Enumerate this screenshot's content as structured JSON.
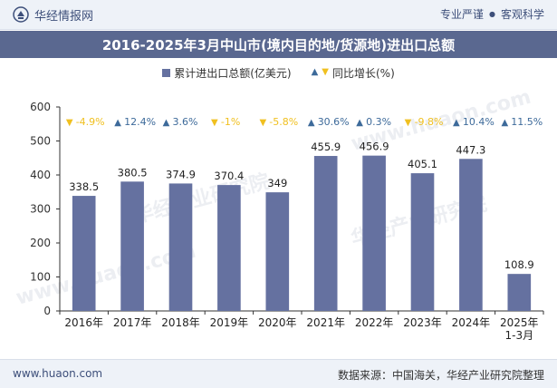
{
  "header": {
    "brand": "华经情报网",
    "tagline_left": "专业严谨",
    "tagline_sep": "●",
    "tagline_right": "客观科学"
  },
  "colors": {
    "bar": "#6571a0",
    "up": "#3d6a9a",
    "down": "#f0c020",
    "title_bg": "#5a6890"
  },
  "footer": {
    "site": "www.huaon.com",
    "source": "数据来源：中国海关，华经产业研究院整理"
  },
  "chart_data": {
    "type": "bar",
    "title": "2016-2025年3月中山市(境内目的地/货源地)进出口总额",
    "categories": [
      "2016年",
      "2017年",
      "2018年",
      "2019年",
      "2020年",
      "2021年",
      "2022年",
      "2023年",
      "2024年",
      "2025年\n1-3月"
    ],
    "series": [
      {
        "name": "累计进出口总额(亿美元)",
        "values": [
          338.5,
          380.5,
          374.9,
          370.4,
          349,
          455.9,
          456.9,
          405.1,
          447.3,
          108.9
        ],
        "value_labels": [
          "338.5",
          "380.5",
          "374.9",
          "370.4",
          "349",
          "455.9",
          "456.9",
          "405.1",
          "447.3",
          "108.9"
        ]
      },
      {
        "name": "同比增长(%)",
        "values": [
          -4.9,
          12.4,
          3.6,
          -1,
          -5.8,
          30.6,
          0.3,
          -9.8,
          10.4,
          11.5
        ],
        "value_labels": [
          "-4.9%",
          "12.4%",
          "3.6%",
          "-1%",
          "-5.8%",
          "30.6%",
          "0.3%",
          "-9.8%",
          "10.4%",
          "11.5%"
        ]
      }
    ],
    "yticks": [
      "0",
      "100",
      "200",
      "300",
      "400",
      "500",
      "600"
    ],
    "ylim": [
      0,
      600
    ],
    "legend_position": "top-center",
    "grid": false
  },
  "watermarks": [
    "华经产业研究院",
    "www.huaon.com"
  ]
}
